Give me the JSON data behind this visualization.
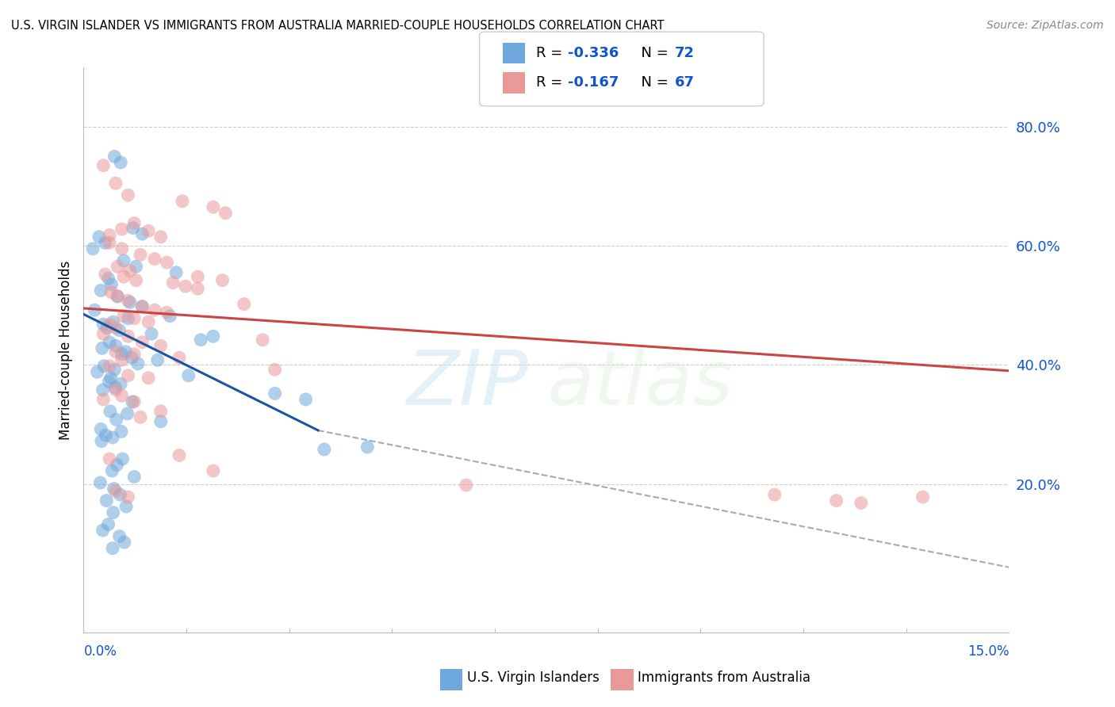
{
  "title": "U.S. VIRGIN ISLANDER VS IMMIGRANTS FROM AUSTRALIA MARRIED-COUPLE HOUSEHOLDS CORRELATION CHART",
  "source": "Source: ZipAtlas.com",
  "ylabel": "Married-couple Households",
  "xlim": [
    0.0,
    15.0
  ],
  "ylim": [
    -5.0,
    90.0
  ],
  "y_ticks": [
    20.0,
    40.0,
    60.0,
    80.0
  ],
  "legend_r1": "-0.336",
  "legend_n1": "72",
  "legend_r2": "-0.167",
  "legend_n2": "67",
  "blue_color": "#6fa8dc",
  "pink_color": "#ea9999",
  "blue_line_color": "#1a56a0",
  "pink_line_color": "#cc4444",
  "dash_color": "#aaaaaa",
  "legend_r_color": "#1155cc",
  "watermark_zip": "ZIP",
  "watermark_atlas": "atlas",
  "blue_line_x": [
    0.0,
    3.8
  ],
  "blue_line_y": [
    48.5,
    29.0
  ],
  "pink_line_x": [
    0.0,
    15.0
  ],
  "pink_line_y": [
    49.5,
    39.0
  ],
  "dash_line_x": [
    3.8,
    15.0
  ],
  "dash_line_y": [
    29.0,
    6.0
  ],
  "blue_x": [
    0.5,
    0.6,
    1.25,
    0.8,
    0.95,
    0.25,
    0.35,
    0.15,
    0.65,
    0.85,
    1.5,
    0.4,
    0.45,
    0.28,
    0.55,
    0.75,
    0.95,
    0.18,
    1.4,
    0.72,
    0.48,
    0.32,
    0.38,
    0.58,
    1.1,
    2.1,
    1.9,
    0.42,
    0.52,
    0.3,
    0.68,
    0.62,
    0.78,
    1.2,
    0.88,
    0.33,
    0.5,
    0.22,
    1.7,
    0.44,
    3.1,
    3.6,
    0.41,
    0.6,
    0.51,
    0.31,
    0.79,
    0.43,
    0.71,
    0.53,
    0.28,
    0.61,
    0.36,
    0.47,
    0.29,
    4.6,
    3.9,
    0.63,
    0.54,
    0.46,
    0.82,
    0.27,
    0.49,
    0.59,
    0.37,
    0.69,
    0.48,
    0.4,
    0.31,
    0.58,
    0.66,
    0.47
  ],
  "blue_y": [
    75.0,
    74.0,
    30.5,
    63.0,
    62.0,
    61.5,
    60.5,
    59.5,
    57.5,
    56.5,
    55.5,
    54.5,
    53.5,
    52.5,
    51.5,
    50.5,
    49.8,
    49.2,
    48.2,
    47.8,
    47.2,
    46.8,
    46.2,
    45.8,
    45.2,
    44.8,
    44.2,
    43.8,
    43.2,
    42.8,
    42.2,
    41.8,
    41.2,
    40.8,
    40.2,
    39.8,
    39.2,
    38.8,
    38.2,
    37.8,
    35.2,
    34.2,
    37.2,
    36.8,
    36.2,
    35.8,
    33.8,
    32.2,
    31.8,
    30.8,
    29.2,
    28.8,
    28.2,
    27.8,
    27.2,
    26.2,
    25.8,
    24.2,
    23.2,
    22.2,
    21.2,
    20.2,
    19.2,
    18.2,
    17.2,
    16.2,
    15.2,
    13.2,
    12.2,
    11.2,
    10.2,
    9.2
  ],
  "pink_x": [
    0.32,
    0.52,
    0.72,
    1.6,
    2.1,
    2.3,
    0.82,
    1.05,
    1.25,
    0.42,
    0.62,
    0.92,
    1.15,
    1.35,
    0.55,
    0.75,
    0.35,
    0.65,
    0.85,
    1.45,
    1.65,
    1.85,
    0.45,
    0.55,
    0.72,
    2.6,
    0.95,
    1.15,
    1.35,
    0.65,
    0.82,
    1.05,
    0.42,
    0.52,
    0.32,
    0.72,
    2.9,
    0.95,
    1.25,
    0.52,
    0.82,
    1.55,
    0.62,
    0.42,
    3.1,
    0.72,
    1.05,
    0.52,
    0.62,
    0.32,
    0.82,
    1.25,
    0.92,
    0.42,
    2.1,
    6.2,
    0.52,
    0.72,
    1.55,
    11.2,
    12.2,
    12.6,
    13.6,
    0.62,
    0.42,
    1.85,
    2.25
  ],
  "pink_y": [
    73.5,
    70.5,
    68.5,
    67.5,
    66.5,
    65.5,
    63.8,
    62.5,
    61.5,
    60.5,
    59.5,
    58.5,
    57.8,
    57.2,
    56.5,
    55.8,
    55.2,
    54.8,
    54.2,
    53.8,
    53.2,
    52.8,
    52.2,
    51.5,
    50.8,
    50.2,
    49.8,
    49.2,
    48.8,
    48.2,
    47.8,
    47.2,
    46.8,
    46.2,
    45.2,
    44.8,
    44.2,
    43.8,
    43.2,
    42.2,
    41.8,
    41.2,
    40.8,
    39.8,
    39.2,
    38.2,
    37.8,
    35.8,
    34.8,
    34.2,
    33.8,
    32.2,
    31.2,
    24.2,
    22.2,
    19.8,
    18.8,
    17.8,
    24.8,
    18.2,
    17.2,
    16.8,
    17.8,
    62.8,
    61.8,
    54.8,
    54.2
  ]
}
